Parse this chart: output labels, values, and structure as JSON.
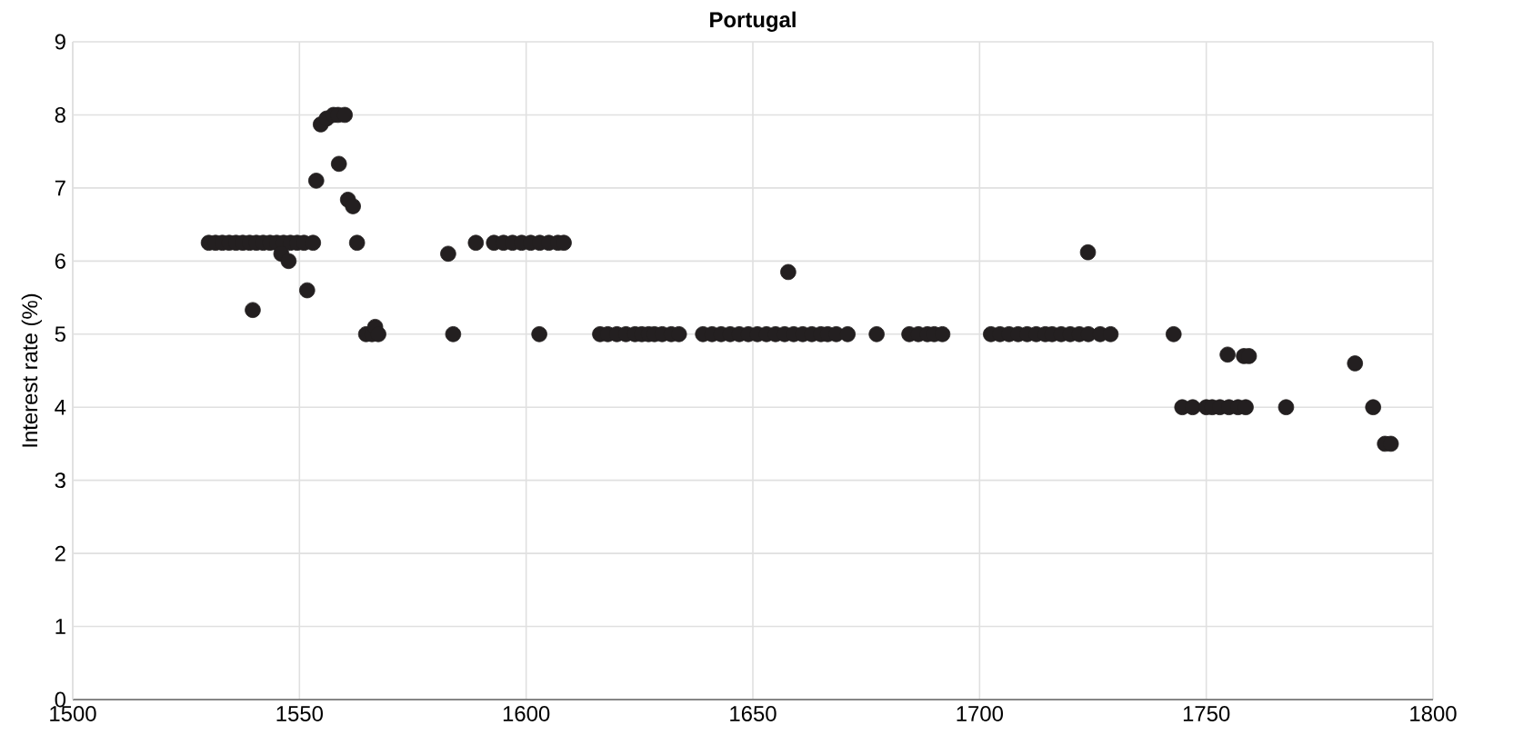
{
  "chart_data": {
    "type": "scatter",
    "title": "Portugal",
    "ylabel": "Interest rate (%)",
    "x": [
      1530,
      1531.5,
      1533,
      1534.5,
      1536,
      1537.5,
      1539,
      1540.5,
      1542,
      1543.5,
      1545,
      1546.5,
      1548,
      1549.5,
      1551,
      1553,
      1546,
      1547.6,
      1539.7,
      1551.7,
      1553.7,
      1554.7,
      1556,
      1557.5,
      1558.5,
      1560,
      1558.7,
      1560.7,
      1561.8,
      1562.7,
      1564.7,
      1566,
      1566.7,
      1567.4,
      1582.8,
      1583.9,
      1588.9,
      1592.9,
      1595,
      1597,
      1599,
      1601,
      1603,
      1605,
      1607,
      1608.3,
      1602.9,
      1616.3,
      1618,
      1620,
      1622,
      1624,
      1625.5,
      1627,
      1628.3,
      1630,
      1632,
      1633.7,
      1639,
      1641,
      1643,
      1645,
      1647,
      1649,
      1651,
      1653,
      1655,
      1657,
      1659,
      1661,
      1663,
      1665,
      1666.5,
      1668.4,
      1670.9,
      1657.8,
      1677.3,
      1684.5,
      1686.5,
      1688.5,
      1690,
      1691.8,
      1702.5,
      1704.5,
      1706.5,
      1708.5,
      1710.5,
      1712.5,
      1714.5,
      1716,
      1718,
      1720,
      1722,
      1724,
      1726.6,
      1728.9,
      1723.9,
      1742.8,
      1744.7,
      1747,
      1750,
      1751.3,
      1753,
      1755,
      1757,
      1758.7,
      1754.7,
      1758.3,
      1759.4,
      1767.6,
      1782.8,
      1786.8,
      1789.4,
      1790.7
    ],
    "values": [
      6.25,
      6.25,
      6.25,
      6.25,
      6.25,
      6.25,
      6.25,
      6.25,
      6.25,
      6.25,
      6.25,
      6.25,
      6.25,
      6.25,
      6.25,
      6.25,
      6.1,
      6.0,
      5.33,
      5.6,
      7.1,
      7.87,
      7.95,
      8.0,
      8.0,
      8.0,
      7.33,
      6.84,
      6.75,
      6.25,
      5.0,
      5.0,
      5.1,
      5.0,
      6.1,
      5.0,
      6.25,
      6.25,
      6.25,
      6.25,
      6.25,
      6.25,
      6.25,
      6.25,
      6.25,
      6.25,
      5.0,
      5.0,
      5.0,
      5.0,
      5.0,
      5.0,
      5.0,
      5.0,
      5.0,
      5.0,
      5.0,
      5.0,
      5.0,
      5.0,
      5.0,
      5.0,
      5.0,
      5.0,
      5.0,
      5.0,
      5.0,
      5.0,
      5.0,
      5.0,
      5.0,
      5.0,
      5.0,
      5.0,
      5.0,
      5.85,
      5.0,
      5.0,
      5.0,
      5.0,
      5.0,
      5.0,
      5.0,
      5.0,
      5.0,
      5.0,
      5.0,
      5.0,
      5.0,
      5.0,
      5.0,
      5.0,
      5.0,
      5.0,
      5.0,
      5.0,
      6.12,
      5.0,
      4.0,
      4.0,
      4.0,
      4.0,
      4.0,
      4.0,
      4.0,
      4.0,
      4.72,
      4.7,
      4.7,
      4.0,
      4.6,
      4.0,
      3.5,
      3.5
    ],
    "color": "#231f20",
    "marker": "circle",
    "grid": true,
    "xlim": [
      1500,
      1800
    ],
    "xticks": [
      1500,
      1550,
      1600,
      1650,
      1700,
      1750,
      1800
    ],
    "ylim": [
      0,
      9
    ],
    "yticks": [
      0,
      1,
      2,
      3,
      4,
      5,
      6,
      7,
      8,
      9
    ]
  }
}
